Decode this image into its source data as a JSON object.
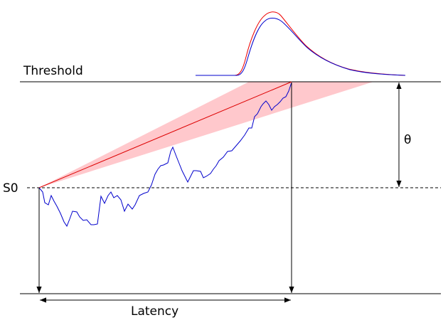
{
  "labels": {
    "threshold": "Threshold",
    "start": "S0",
    "theta": "θ",
    "latency": "Latency"
  },
  "colors": {
    "walk": "#0000cc",
    "mean_line": "#dd0000",
    "cone": "#ffc0c8",
    "axes": "#000000",
    "density_red": "#ee0000",
    "density_blue": "#0000cc"
  }
}
